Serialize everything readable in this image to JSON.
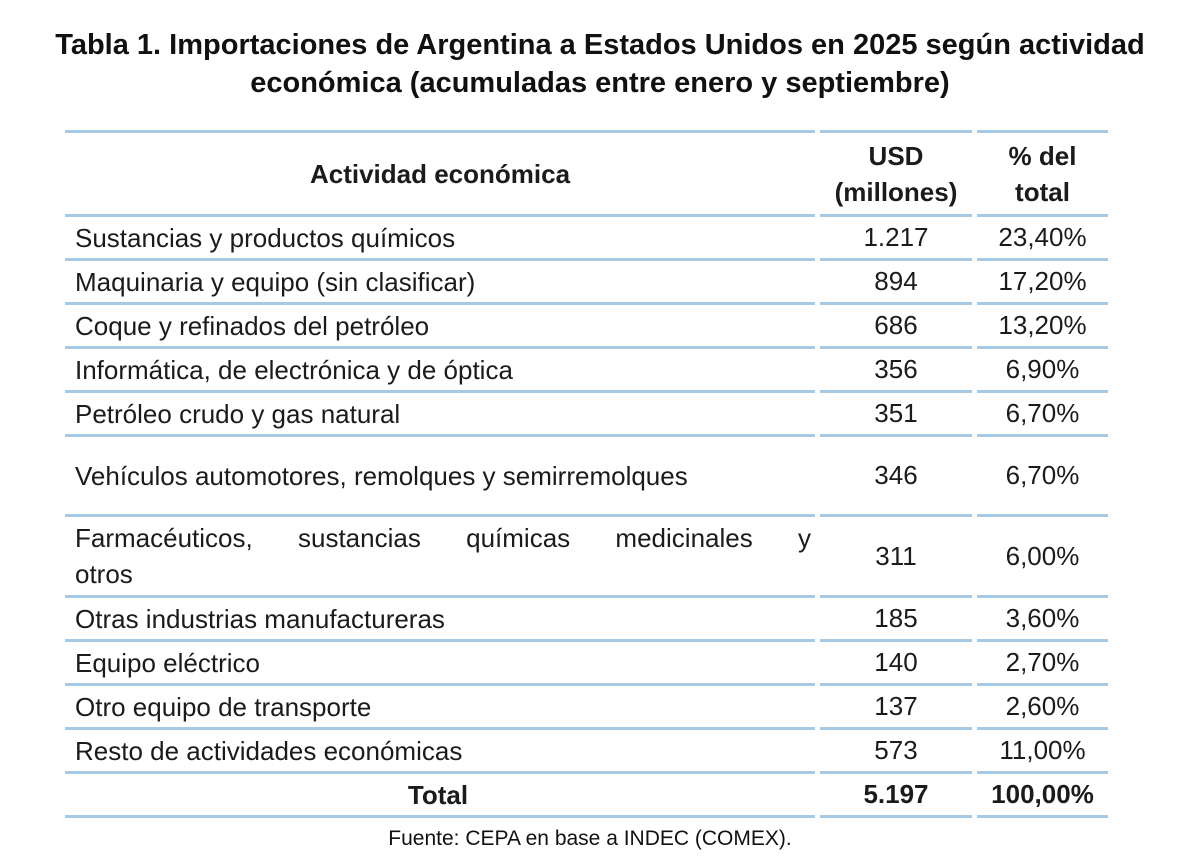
{
  "title": "Tabla 1. Importaciones de Argentina a Estados Unidos en 2025 según actividad\neconómica (acumuladas entre enero y septiembre)",
  "table": {
    "header": {
      "activity": "Actividad económica",
      "usd": "USD\n(millones)",
      "pct": "% del\ntotal"
    },
    "rows": [
      {
        "activity": "Sustancias y productos químicos",
        "usd": "1.217",
        "pct": "23,40%"
      },
      {
        "activity": "Maquinaria y equipo (sin clasificar)",
        "usd": "894",
        "pct": "17,20%"
      },
      {
        "activity": "Coque y refinados del petróleo",
        "usd": "686",
        "pct": "13,20%"
      },
      {
        "activity": "Informática, de electrónica y de óptica",
        "usd": "356",
        "pct": "6,90%"
      },
      {
        "activity": "Petróleo crudo y gas natural",
        "usd": "351",
        "pct": "6,70%"
      },
      {
        "activity": "Vehículos automotores, remolques y semirremolques",
        "usd": "346",
        "pct": "6,70%",
        "tall": true
      },
      {
        "activity": "Farmacéuticos, sustancias químicas medicinales y\notros",
        "usd": "311",
        "pct": "6,00%",
        "tall_wrap": true,
        "justify": true
      },
      {
        "activity": "Otras industrias manufactureras",
        "usd": "185",
        "pct": "3,60%"
      },
      {
        "activity": "Equipo eléctrico",
        "usd": "140",
        "pct": "2,70%"
      },
      {
        "activity": "Otro equipo de transporte",
        "usd": "137",
        "pct": "2,60%"
      },
      {
        "activity": "Resto de actividades económicas",
        "usd": "573",
        "pct": "11,00%"
      },
      {
        "activity": "Total",
        "usd": "5.197",
        "pct": "100,00%",
        "is_total": true
      }
    ]
  },
  "source": "Fuente: CEPA en base a INDEC (COMEX).",
  "colors": {
    "table_border": "#a6c9e5",
    "text": "#1b1b1b",
    "background": "#ffffff"
  }
}
